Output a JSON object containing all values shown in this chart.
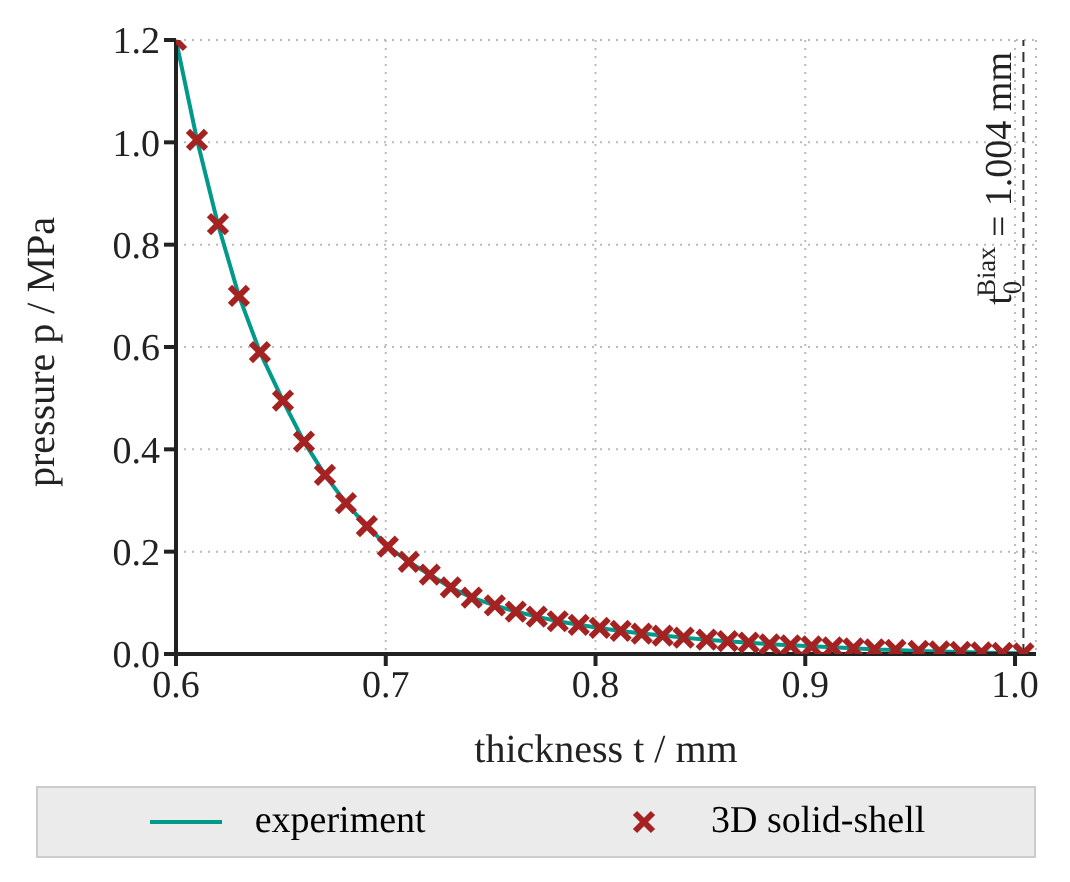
{
  "chart_data": {
    "type": "line",
    "xlabel": "thickness t / mm",
    "ylabel": "pressure p / MPa",
    "xlim": [
      0.6,
      1.01
    ],
    "ylim": [
      0,
      1.2
    ],
    "xticks": [
      {
        "value": 0.6,
        "label": "0.6"
      },
      {
        "value": 0.7,
        "label": "0.7"
      },
      {
        "value": 0.8,
        "label": "0.8"
      },
      {
        "value": 0.9,
        "label": "0.9"
      },
      {
        "value": 1.0,
        "label": "1.0"
      }
    ],
    "yticks": [
      {
        "value": 0,
        "label": "0.0"
      },
      {
        "value": 0.2,
        "label": "0.2"
      },
      {
        "value": 0.4,
        "label": "0.4"
      },
      {
        "value": 0.6,
        "label": "0.6"
      },
      {
        "value": 0.8,
        "label": "0.8"
      },
      {
        "value": 1.0,
        "label": "1.0"
      },
      {
        "value": 1.2,
        "label": "1.2"
      }
    ],
    "grid": true,
    "legend": "bottom",
    "x": [
      0.6,
      0.61,
      0.62,
      0.63,
      0.64,
      0.651,
      0.661,
      0.671,
      0.681,
      0.691,
      0.701,
      0.711,
      0.721,
      0.731,
      0.741,
      0.752,
      0.762,
      0.772,
      0.782,
      0.792,
      0.802,
      0.812,
      0.822,
      0.832,
      0.842,
      0.853,
      0.863,
      0.873,
      0.883,
      0.893,
      0.903,
      0.913,
      0.923,
      0.933,
      0.943,
      0.954,
      0.964,
      0.974,
      0.984,
      0.994,
      1.004
    ],
    "series": [
      {
        "name": "experiment",
        "color": "#00998a",
        "marker": "none",
        "line_style": "solid",
        "values": [
          1.2,
          1.005,
          0.84,
          0.7,
          0.59,
          0.495,
          0.415,
          0.35,
          0.295,
          0.25,
          0.21,
          0.18,
          0.155,
          0.13,
          0.11,
          0.095,
          0.083,
          0.073,
          0.064,
          0.057,
          0.051,
          0.045,
          0.04,
          0.036,
          0.032,
          0.028,
          0.025,
          0.022,
          0.019,
          0.017,
          0.015,
          0.013,
          0.011,
          0.009,
          0.008,
          0.006,
          0.005,
          0.004,
          0.003,
          0.002,
          0.001
        ]
      },
      {
        "name": "3D solid-shell",
        "type": "scatter",
        "color": "#a52222",
        "marker": "cross",
        "values": [
          1.2,
          1.005,
          0.84,
          0.7,
          0.59,
          0.495,
          0.415,
          0.35,
          0.295,
          0.25,
          0.21,
          0.18,
          0.155,
          0.13,
          0.11,
          0.095,
          0.083,
          0.073,
          0.064,
          0.057,
          0.051,
          0.045,
          0.04,
          0.036,
          0.032,
          0.028,
          0.025,
          0.022,
          0.019,
          0.017,
          0.015,
          0.013,
          0.011,
          0.009,
          0.008,
          0.006,
          0.005,
          0.004,
          0.003,
          0.002,
          0.001
        ]
      }
    ],
    "ref_lines": [
      {
        "axis": "x",
        "value": 1.004,
        "label": "t$_{0}$$^{Biax}$ = 1.004 mm",
        "color": "#333333",
        "line_style": "dashed"
      }
    ]
  }
}
